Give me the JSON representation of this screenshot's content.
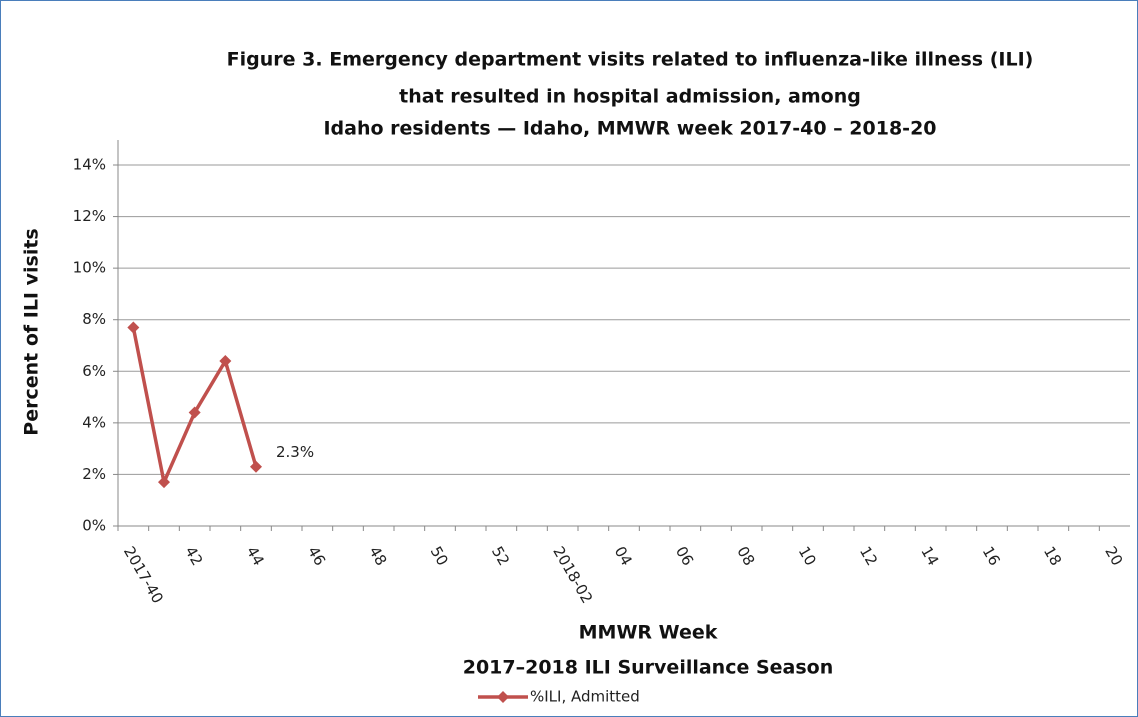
{
  "chart_data": {
    "type": "line",
    "title": [
      "Figure 3. Emergency department visits related to influenza-like illness (ILI)",
      "that resulted in hospital admission, among",
      "Idaho residents — Idaho, MMWR week 2017-40 – 2018-20"
    ],
    "x_label": [
      "MMWR Week",
      "2017–2018 ILI Surveillance Season"
    ],
    "y_label": "Percent of  ILI visits",
    "categories": [
      "2017-40",
      null,
      "42",
      null,
      "44",
      null,
      "46",
      null,
      "48",
      null,
      "50",
      null,
      "52",
      null,
      "2018-02",
      null,
      "04",
      null,
      "06",
      null,
      "08",
      null,
      "10",
      null,
      "12",
      null,
      "14",
      null,
      "16",
      null,
      "18",
      null,
      "20"
    ],
    "series": [
      {
        "name": "%ILI, Admitted",
        "color": "#c0504d",
        "values": [
          7.7,
          1.7,
          4.4,
          6.4,
          2.3,
          null,
          null,
          null,
          null,
          null,
          null,
          null,
          null,
          null,
          null,
          null,
          null,
          null,
          null,
          null,
          null,
          null,
          null,
          null,
          null,
          null,
          null,
          null,
          null,
          null,
          null,
          null,
          null
        ],
        "value_labels": [
          null,
          null,
          null,
          null,
          "2.3%",
          null,
          null,
          null,
          null,
          null,
          null,
          null,
          null,
          null,
          null,
          null,
          null,
          null,
          null,
          null,
          null,
          null,
          null,
          null,
          null,
          null,
          null,
          null,
          null,
          null,
          null,
          null,
          null
        ]
      }
    ],
    "ylim": [
      0,
      14
    ],
    "yticks": [
      {
        "value": 0,
        "label": "0%"
      },
      {
        "value": 2,
        "label": "2%"
      },
      {
        "value": 4,
        "label": "4%"
      },
      {
        "value": 6,
        "label": "6%"
      },
      {
        "value": 8,
        "label": "8%"
      },
      {
        "value": 10,
        "label": "10%"
      },
      {
        "value": 12,
        "label": "12%"
      },
      {
        "value": 14,
        "label": "14%"
      }
    ],
    "grid": true,
    "legend": "bottom"
  }
}
